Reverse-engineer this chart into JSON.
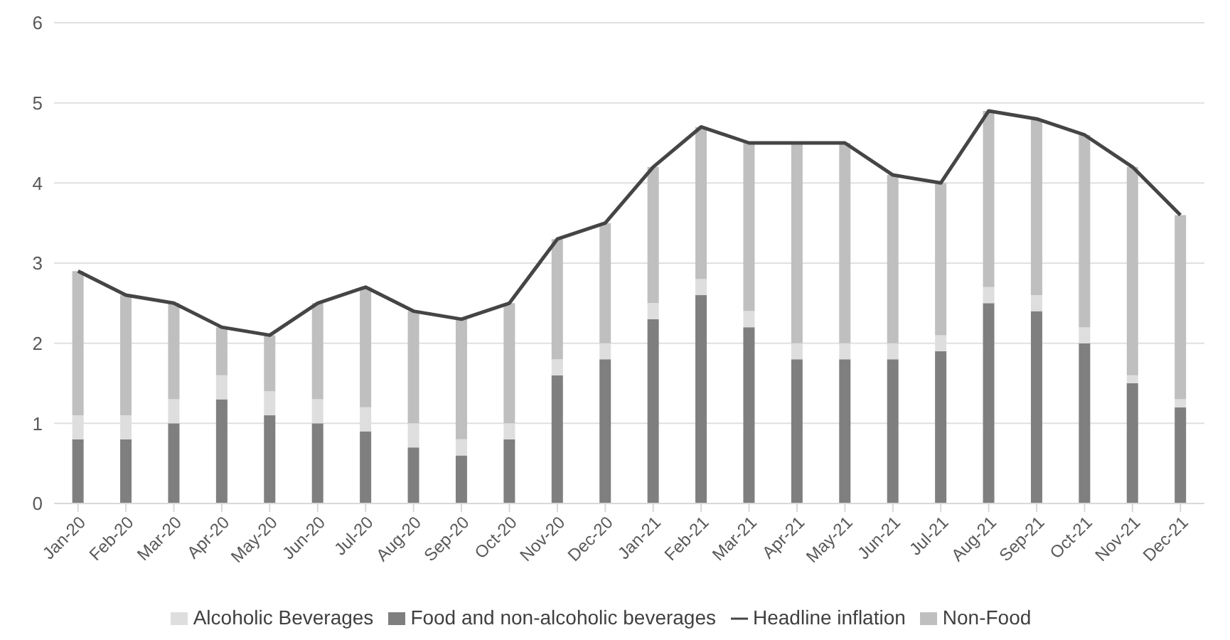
{
  "chart_data": {
    "type": "bar",
    "stacked": true,
    "categories": [
      "Jan-20",
      "Feb-20",
      "Mar-20",
      "Apr-20",
      "May-20",
      "Jun-20",
      "Jul-20",
      "Aug-20",
      "Sep-20",
      "Oct-20",
      "Nov-20",
      "Dec-20",
      "Jan-21",
      "Feb-21",
      "Mar-21",
      "Apr-21",
      "May-21",
      "Jun-21",
      "Jul-21",
      "Aug-21",
      "Sep-21",
      "Oct-21",
      "Nov-21",
      "Dec-21"
    ],
    "series": [
      {
        "name": "Food and non-alcoholic beverages",
        "color": "#7f7f7f",
        "values": [
          0.8,
          0.8,
          1.0,
          1.3,
          1.1,
          1.0,
          0.9,
          0.7,
          0.6,
          0.8,
          1.6,
          1.8,
          2.3,
          2.6,
          2.2,
          1.8,
          1.8,
          1.8,
          1.9,
          2.5,
          2.4,
          2.0,
          1.5,
          1.2
        ]
      },
      {
        "name": "Alcoholic Beverages",
        "color": "#dedede",
        "values": [
          0.3,
          0.3,
          0.3,
          0.3,
          0.3,
          0.3,
          0.3,
          0.3,
          0.2,
          0.2,
          0.2,
          0.2,
          0.2,
          0.2,
          0.2,
          0.2,
          0.2,
          0.2,
          0.2,
          0.2,
          0.2,
          0.2,
          0.1,
          0.1
        ]
      },
      {
        "name": "Non-Food",
        "color": "#bfbfbf",
        "values": [
          1.8,
          1.5,
          1.2,
          0.6,
          0.7,
          1.2,
          1.5,
          1.4,
          1.5,
          1.5,
          1.5,
          1.5,
          1.7,
          1.9,
          2.1,
          2.5,
          2.5,
          2.1,
          1.9,
          2.2,
          2.2,
          2.4,
          2.6,
          2.3
        ]
      },
      {
        "name": "Headline inflation",
        "type": "line",
        "color": "#454545",
        "values": [
          2.9,
          2.6,
          2.5,
          2.2,
          2.1,
          2.5,
          2.7,
          2.4,
          2.3,
          2.5,
          3.3,
          3.5,
          4.2,
          4.7,
          4.5,
          4.5,
          4.5,
          4.1,
          4.0,
          4.9,
          4.8,
          4.6,
          4.2,
          3.6
        ]
      }
    ],
    "ylim": [
      0,
      6
    ],
    "yticks": [
      0,
      1,
      2,
      3,
      4,
      5,
      6
    ],
    "grid": "y",
    "legend": "bottom",
    "marker": "none"
  }
}
